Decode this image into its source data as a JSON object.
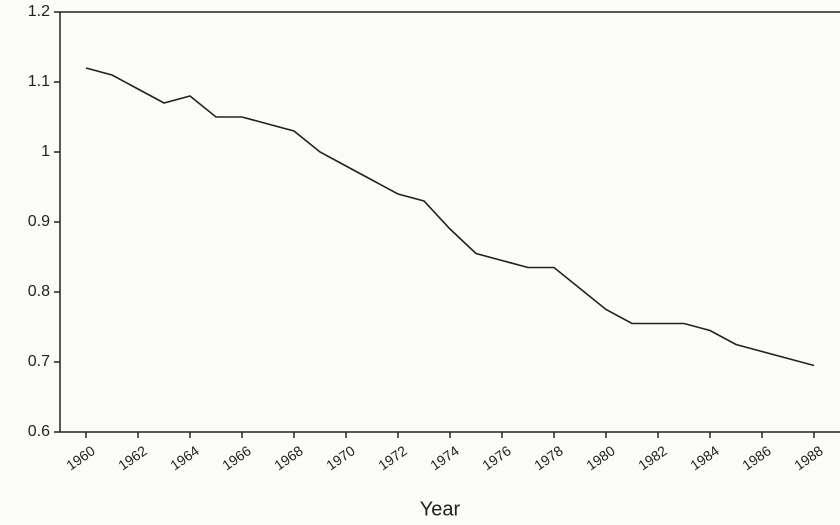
{
  "chart_data": {
    "type": "line",
    "x_label": "Year",
    "x": [
      1960,
      1961,
      1962,
      1963,
      1964,
      1965,
      1966,
      1967,
      1968,
      1969,
      1970,
      1971,
      1972,
      1973,
      1974,
      1975,
      1976,
      1977,
      1978,
      1979,
      1980,
      1981,
      1982,
      1983,
      1984,
      1985,
      1986,
      1987,
      1988
    ],
    "series": [
      {
        "color": "#222222",
        "values": [
          1.12,
          1.11,
          1.09,
          1.07,
          1.08,
          1.05,
          1.05,
          1.04,
          1.03,
          1.0,
          0.98,
          0.96,
          0.94,
          0.93,
          0.89,
          0.855,
          0.845,
          0.835,
          0.835,
          0.805,
          0.775,
          0.755,
          0.755,
          0.755,
          0.745,
          0.725,
          0.715,
          0.705,
          0.695
        ]
      }
    ],
    "xlim": [
      1959,
      1989
    ],
    "xticks": [
      1960,
      1962,
      1964,
      1966,
      1968,
      1970,
      1972,
      1974,
      1976,
      1978,
      1980,
      1982,
      1984,
      1986,
      1988
    ],
    "ylim": [
      0.6,
      1.2
    ],
    "yticks": [
      0.6,
      0.7,
      0.8,
      0.9,
      1,
      1.1,
      1.2
    ],
    "grid": false
  }
}
